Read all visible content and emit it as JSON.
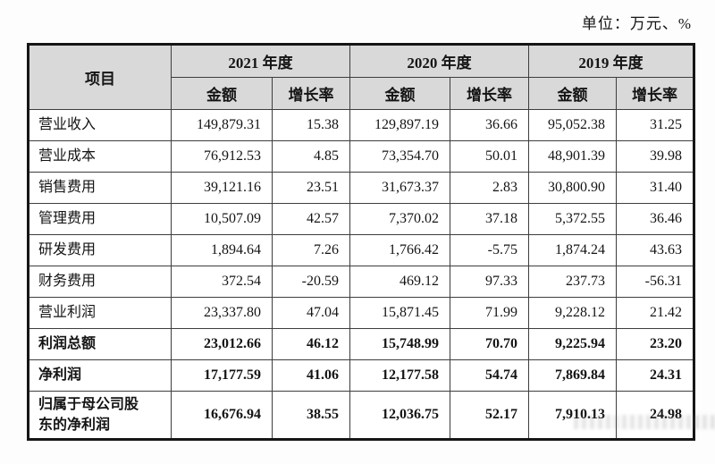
{
  "unit_label": "单位：万元、%",
  "table": {
    "item_header": "项目",
    "year_groups": [
      {
        "label": "2021 年度"
      },
      {
        "label": "2020 年度"
      },
      {
        "label": "2019 年度"
      }
    ],
    "sub_headers": {
      "amount": "金额",
      "growth": "增长率"
    },
    "rows": [
      {
        "label": "营业收入",
        "bold": false,
        "values": [
          "149,879.31",
          "15.38",
          "129,897.19",
          "36.66",
          "95,052.38",
          "31.25"
        ]
      },
      {
        "label": "营业成本",
        "bold": false,
        "values": [
          "76,912.53",
          "4.85",
          "73,354.70",
          "50.01",
          "48,901.39",
          "39.98"
        ]
      },
      {
        "label": "销售费用",
        "bold": false,
        "values": [
          "39,121.16",
          "23.51",
          "31,673.37",
          "2.83",
          "30,800.90",
          "31.40"
        ]
      },
      {
        "label": "管理费用",
        "bold": false,
        "values": [
          "10,507.09",
          "42.57",
          "7,370.02",
          "37.18",
          "5,372.55",
          "36.46"
        ]
      },
      {
        "label": "研发费用",
        "bold": false,
        "values": [
          "1,894.64",
          "7.26",
          "1,766.42",
          "-5.75",
          "1,874.24",
          "43.63"
        ]
      },
      {
        "label": "财务费用",
        "bold": false,
        "values": [
          "372.54",
          "-20.59",
          "469.12",
          "97.33",
          "237.73",
          "-56.31"
        ]
      },
      {
        "label": "营业利润",
        "bold": false,
        "values": [
          "23,337.80",
          "47.04",
          "15,871.45",
          "71.99",
          "9,228.12",
          "21.42"
        ]
      },
      {
        "label": "利润总额",
        "bold": true,
        "values": [
          "23,012.66",
          "46.12",
          "15,748.99",
          "70.70",
          "9,225.94",
          "23.20"
        ]
      },
      {
        "label": "净利润",
        "bold": true,
        "values": [
          "17,177.59",
          "41.06",
          "12,177.58",
          "54.74",
          "7,869.84",
          "24.31"
        ]
      },
      {
        "label": "归属于母公司股东的净利润",
        "bold": true,
        "values": [
          "16,676.94",
          "38.55",
          "12,036.75",
          "52.17",
          "7,910.13",
          "24.98"
        ]
      }
    ]
  },
  "colors": {
    "header_bg": "#d9d9d9",
    "outer_border": "#161616",
    "inner_border": "#3d3d3d",
    "text": "#141414"
  }
}
